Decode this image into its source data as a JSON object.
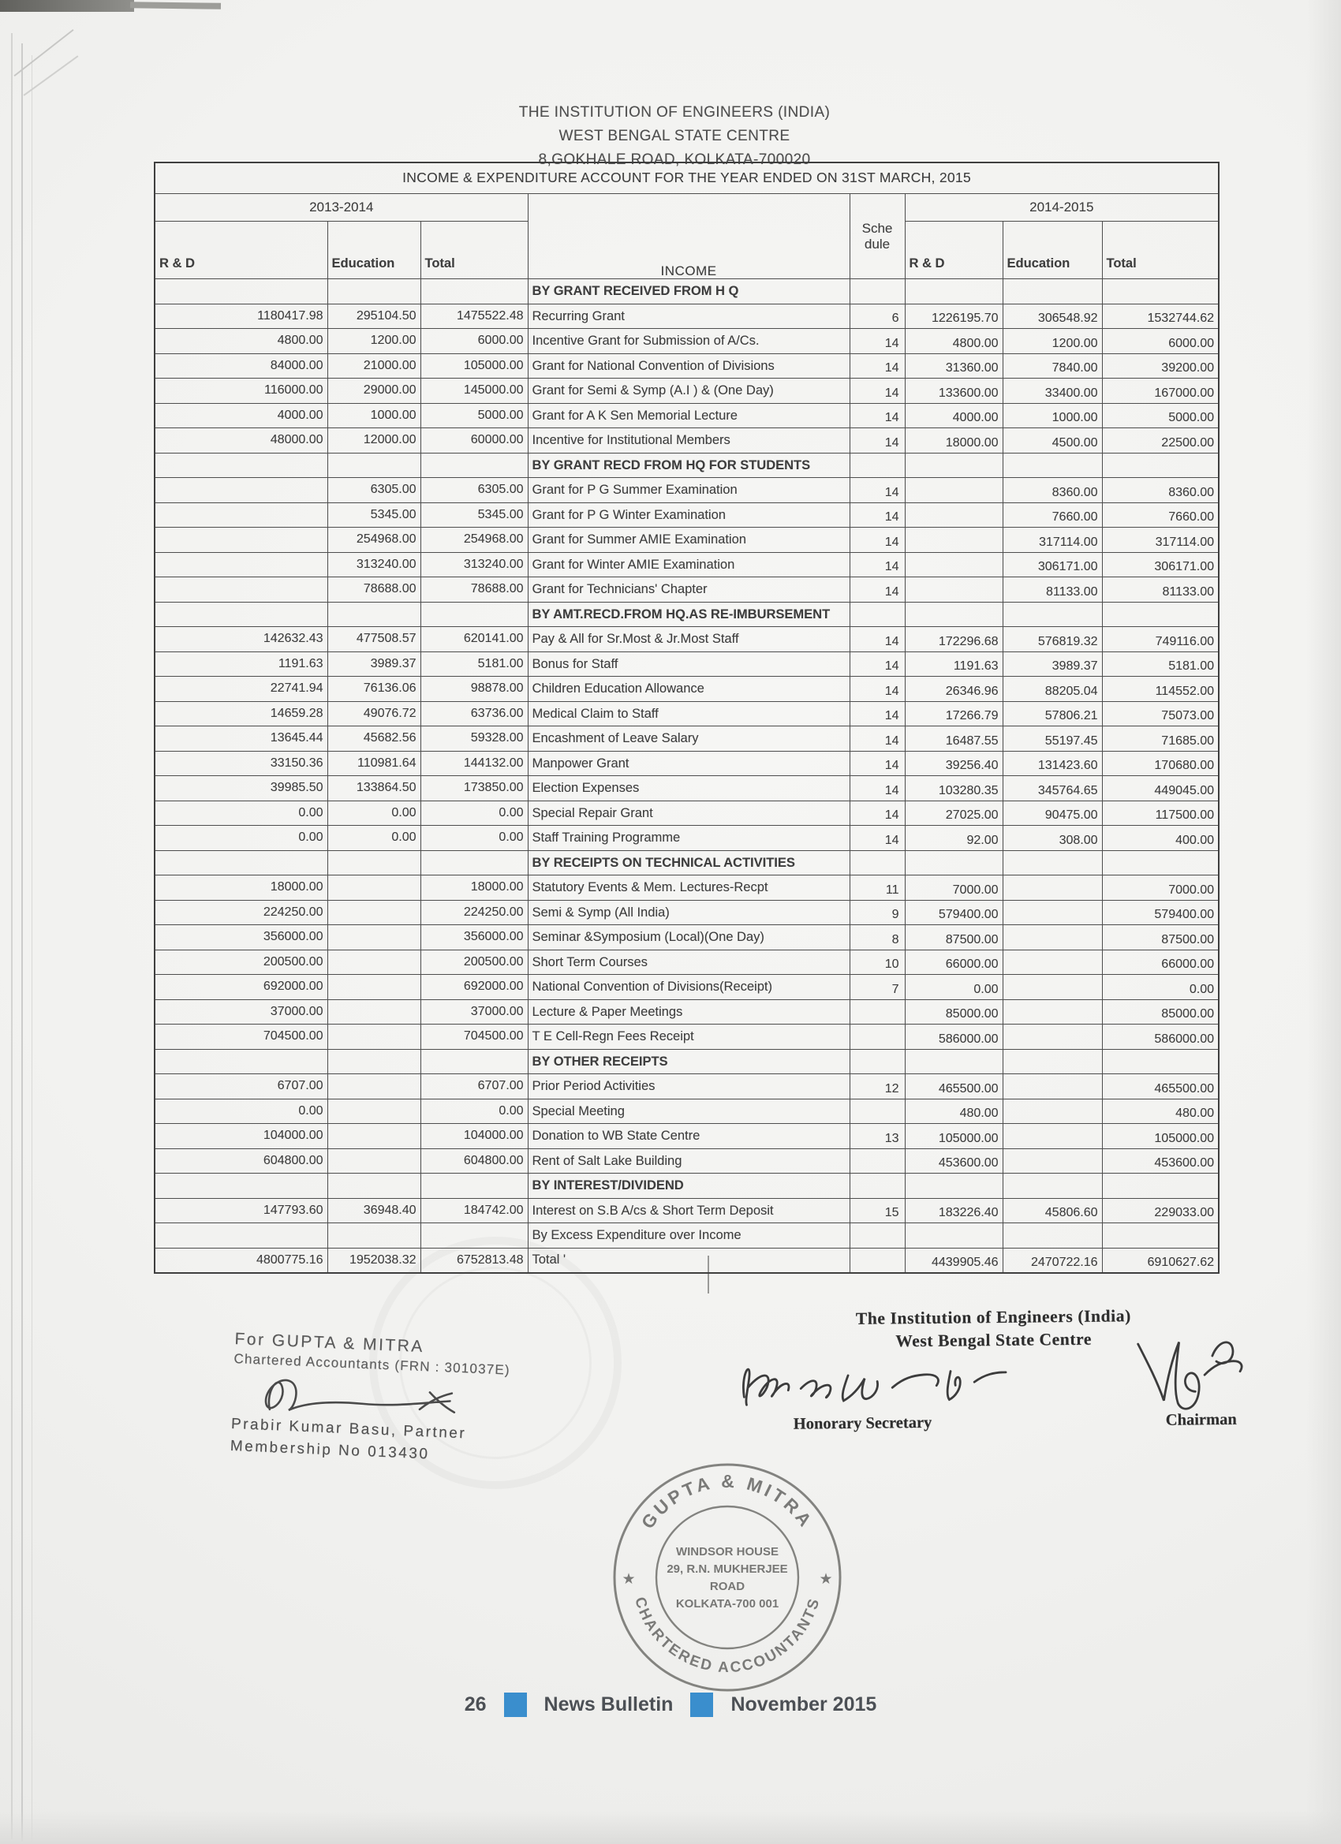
{
  "letterhead": {
    "line1": "THE INSTITUTION OF ENGINEERS (INDIA)",
    "line2": "WEST BENGAL STATE CENTRE",
    "line3": "8,GOKHALE ROAD, KOLKATA-700020"
  },
  "table": {
    "title": "INCOME & EXPENDITURE ACCOUNT FOR THE YEAR ENDED ON 31ST MARCH, 2015",
    "period_prev": "2013-2014",
    "period_curr": "2014-2015",
    "col_headers": {
      "rd_prev": "R & D",
      "edu_prev": "Education",
      "total_prev": "Total",
      "income": "INCOME",
      "schedule": "Sche dule",
      "rd_curr": "R & D",
      "edu_curr": "Education",
      "total_curr": "Total"
    },
    "rows": [
      {
        "type": "section",
        "label": "BY GRANT RECEIVED FROM H Q"
      },
      {
        "type": "data",
        "label": "Recurring Grant",
        "prev": [
          "1180417.98",
          "295104.50",
          "1475522.48"
        ],
        "sch": "6",
        "curr": [
          "1226195.70",
          "306548.92",
          "1532744.62"
        ]
      },
      {
        "type": "data",
        "label": "Incentive  Grant for Submission of A/Cs.",
        "prev": [
          "4800.00",
          "1200.00",
          "6000.00"
        ],
        "sch": "14",
        "curr": [
          "4800.00",
          "1200.00",
          "6000.00"
        ]
      },
      {
        "type": "data",
        "label": "Grant for National Convention of Divisions",
        "prev": [
          "84000.00",
          "21000.00",
          "105000.00"
        ],
        "sch": "14",
        "curr": [
          "31360.00",
          "7840.00",
          "39200.00"
        ]
      },
      {
        "type": "data",
        "label": "Grant for Semi & Symp (A.I ) & (One Day)",
        "prev": [
          "116000.00",
          "29000.00",
          "145000.00"
        ],
        "sch": "14",
        "curr": [
          "133600.00",
          "33400.00",
          "167000.00"
        ]
      },
      {
        "type": "data",
        "label": "Grant for A K Sen Memorial Lecture",
        "prev": [
          "4000.00",
          "1000.00",
          "5000.00"
        ],
        "sch": "14",
        "curr": [
          "4000.00",
          "1000.00",
          "5000.00"
        ]
      },
      {
        "type": "data",
        "label": "Incentive for Institutional Members",
        "prev": [
          "48000.00",
          "12000.00",
          "60000.00"
        ],
        "sch": "14",
        "curr": [
          "18000.00",
          "4500.00",
          "22500.00"
        ]
      },
      {
        "type": "section",
        "label": "BY GRANT RECD FROM HQ FOR STUDENTS"
      },
      {
        "type": "data",
        "label": "Grant for P G Summer  Examination",
        "prev": [
          "",
          "6305.00",
          "6305.00"
        ],
        "sch": "14",
        "curr": [
          "",
          "8360.00",
          "8360.00"
        ]
      },
      {
        "type": "data",
        "label": "Grant for P G Winter  Examination",
        "prev": [
          "",
          "5345.00",
          "5345.00"
        ],
        "sch": "14",
        "curr": [
          "",
          "7660.00",
          "7660.00"
        ]
      },
      {
        "type": "data",
        "label": "Grant for Summer  AMIE Examination",
        "prev": [
          "",
          "254968.00",
          "254968.00"
        ],
        "sch": "14",
        "curr": [
          "",
          "317114.00",
          "317114.00"
        ]
      },
      {
        "type": "data",
        "label": "Grant for Winter  AMIE Examination",
        "prev": [
          "",
          "313240.00",
          "313240.00"
        ],
        "sch": "14",
        "curr": [
          "",
          "306171.00",
          "306171.00"
        ]
      },
      {
        "type": "data",
        "label": "Grant  for Technicians' Chapter",
        "prev": [
          "",
          "78688.00",
          "78688.00"
        ],
        "sch": "14",
        "curr": [
          "",
          "81133.00",
          "81133.00"
        ]
      },
      {
        "type": "section",
        "label": "BY AMT.RECD.FROM HQ.AS RE-IMBURSEMENT"
      },
      {
        "type": "data",
        "label": "Pay & All for Sr.Most & Jr.Most Staff",
        "prev": [
          "142632.43",
          "477508.57",
          "620141.00"
        ],
        "sch": "14",
        "curr": [
          "172296.68",
          "576819.32",
          "749116.00"
        ]
      },
      {
        "type": "data",
        "label": "Bonus for Staff",
        "prev": [
          "1191.63",
          "3989.37",
          "5181.00"
        ],
        "sch": "14",
        "curr": [
          "1191.63",
          "3989.37",
          "5181.00"
        ]
      },
      {
        "type": "data",
        "label": "Children Education Allowance",
        "prev": [
          "22741.94",
          "76136.06",
          "98878.00"
        ],
        "sch": "14",
        "curr": [
          "26346.96",
          "88205.04",
          "114552.00"
        ]
      },
      {
        "type": "data",
        "label": "Medical Claim  to Staff",
        "prev": [
          "14659.28",
          "49076.72",
          "63736.00"
        ],
        "sch": "14",
        "curr": [
          "17266.79",
          "57806.21",
          "75073.00"
        ]
      },
      {
        "type": "data",
        "label": "Encashment of Leave  Salary",
        "prev": [
          "13645.44",
          "45682.56",
          "59328.00"
        ],
        "sch": "14",
        "curr": [
          "16487.55",
          "55197.45",
          "71685.00"
        ]
      },
      {
        "type": "data",
        "label": "Manpower Grant",
        "prev": [
          "33150.36",
          "110981.64",
          "144132.00"
        ],
        "sch": "14",
        "curr": [
          "39256.40",
          "131423.60",
          "170680.00"
        ]
      },
      {
        "type": "data",
        "label": "Election Expenses",
        "prev": [
          "39985.50",
          "133864.50",
          "173850.00"
        ],
        "sch": "14",
        "curr": [
          "103280.35",
          "345764.65",
          "449045.00"
        ]
      },
      {
        "type": "data",
        "label": "Special Repair Grant",
        "prev": [
          "0.00",
          "0.00",
          "0.00"
        ],
        "sch": "14",
        "curr": [
          "27025.00",
          "90475.00",
          "117500.00"
        ]
      },
      {
        "type": "data",
        "label": "Staff Training Programme",
        "prev": [
          "0.00",
          "0.00",
          "0.00"
        ],
        "sch": "14",
        "curr": [
          "92.00",
          "308.00",
          "400.00"
        ]
      },
      {
        "type": "section",
        "label": "BY RECEIPTS ON TECHNICAL ACTIVITIES"
      },
      {
        "type": "data",
        "label": "Statutory Events & Mem. Lectures-Recpt",
        "prev": [
          "18000.00",
          "",
          "18000.00"
        ],
        "sch": "11",
        "curr": [
          "7000.00",
          "",
          "7000.00"
        ]
      },
      {
        "type": "data",
        "label": "Semi & Symp (All  India)",
        "prev": [
          "224250.00",
          "",
          "224250.00"
        ],
        "sch": "9",
        "curr": [
          "579400.00",
          "",
          "579400.00"
        ]
      },
      {
        "type": "data",
        "label": "Seminar &Symposium (Local)(One Day)",
        "prev": [
          "356000.00",
          "",
          "356000.00"
        ],
        "sch": "8",
        "curr": [
          "87500.00",
          "",
          "87500.00"
        ]
      },
      {
        "type": "data",
        "label": "Short Term Courses",
        "prev": [
          "200500.00",
          "",
          "200500.00"
        ],
        "sch": "10",
        "curr": [
          "66000.00",
          "",
          "66000.00"
        ]
      },
      {
        "type": "data",
        "label": "National Convention of Divisions(Receipt)",
        "prev": [
          "692000.00",
          "",
          "692000.00"
        ],
        "sch": "7",
        "curr": [
          "0.00",
          "",
          "0.00"
        ]
      },
      {
        "type": "data",
        "label": "Lecture & Paper Meetings",
        "prev": [
          "37000.00",
          "",
          "37000.00"
        ],
        "sch": "",
        "curr": [
          "85000.00",
          "",
          "85000.00"
        ]
      },
      {
        "type": "data",
        "label": "T E Cell-Regn Fees Receipt",
        "prev": [
          "704500.00",
          "",
          "704500.00"
        ],
        "sch": "",
        "curr": [
          "586000.00",
          "",
          "586000.00"
        ]
      },
      {
        "type": "section",
        "label": "BY OTHER RECEIPTS"
      },
      {
        "type": "data",
        "label": "Prior Period Activities",
        "prev": [
          "6707.00",
          "",
          "6707.00"
        ],
        "sch": "12",
        "curr": [
          "465500.00",
          "",
          "465500.00"
        ]
      },
      {
        "type": "data",
        "label": "Special Meeting",
        "prev": [
          "0.00",
          "",
          "0.00"
        ],
        "sch": "",
        "curr": [
          "480.00",
          "",
          "480.00"
        ]
      },
      {
        "type": "data",
        "label": "Donation to WB State Centre",
        "prev": [
          "104000.00",
          "",
          "104000.00"
        ],
        "sch": "13",
        "curr": [
          "105000.00",
          "",
          "105000.00"
        ]
      },
      {
        "type": "data",
        "label": "Rent of Salt Lake Building",
        "prev": [
          "604800.00",
          "",
          "604800.00"
        ],
        "sch": "",
        "curr": [
          "453600.00",
          "",
          "453600.00"
        ]
      },
      {
        "type": "section",
        "label": "BY INTEREST/DIVIDEND"
      },
      {
        "type": "data",
        "label": "Interest on S.B A/cs & Short Term Deposit",
        "prev": [
          "147793.60",
          "36948.40",
          "184742.00"
        ],
        "sch": "15",
        "curr": [
          "183226.40",
          "45806.60",
          "229033.00"
        ]
      },
      {
        "type": "data",
        "label": "By Excess Expenditure over Income",
        "prev": [
          "",
          "",
          ""
        ],
        "sch": "",
        "curr": [
          "",
          "",
          ""
        ]
      },
      {
        "type": "data",
        "label": "Total '",
        "prev": [
          "4800775.16",
          "1952038.32",
          "6752813.48"
        ],
        "sch": "",
        "curr": [
          "4439905.46",
          "2470722.16",
          "6910627.62"
        ]
      }
    ]
  },
  "signatures": {
    "left": {
      "for_line": "For GUPTA & MITRA",
      "firm_line": "Chartered Accountants (FRN : 301037E)",
      "partner_line": "Prabir Kumar Basu, Partner",
      "membership_line": "Membership No 013430"
    },
    "right": {
      "org1": "The Institution of Engineers (India)",
      "org2": "West Bengal State Centre",
      "role_left": "Honorary Secretary",
      "role_right": "Chairman"
    }
  },
  "stamp": {
    "arc_top": "GUPTA & MITRA",
    "arc_bottom": "CHARTERED ACCOUNTANTS",
    "star": "★",
    "center": [
      "WINDSOR HOUSE",
      "29, R.N. MUKHERJEE",
      "ROAD",
      "KOLKATA-700 001"
    ]
  },
  "footer": {
    "page_number": "26",
    "bulletin": "News Bulletin",
    "date": "November 2015",
    "accent_color": "#3a8ecd"
  }
}
